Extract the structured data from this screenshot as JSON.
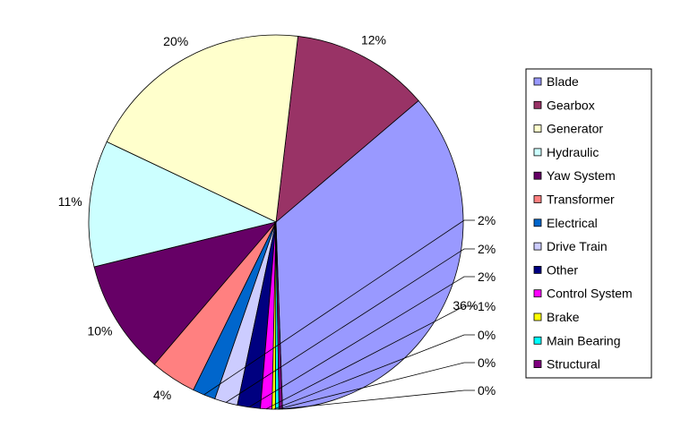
{
  "chart_data": {
    "type": "pie",
    "title": "",
    "legend_position": "right",
    "slices": [
      {
        "name": "Blade",
        "value": 36,
        "label": "36%",
        "color": "#9999FF"
      },
      {
        "name": "Gearbox",
        "value": 12,
        "label": "12%",
        "color": "#993366"
      },
      {
        "name": "Generator",
        "value": 20,
        "label": "20%",
        "color": "#FFFFCC"
      },
      {
        "name": "Hydraulic",
        "value": 11,
        "label": "11%",
        "color": "#CCFFFF"
      },
      {
        "name": "Yaw System",
        "value": 10,
        "label": "10%",
        "color": "#660066"
      },
      {
        "name": "Transformer",
        "value": 4,
        "label": "4%",
        "color": "#FF8080"
      },
      {
        "name": "Electrical",
        "value": 2,
        "label": "2%",
        "color": "#0066CC"
      },
      {
        "name": "Drive Train",
        "value": 2,
        "label": "2%",
        "color": "#CCCCFF"
      },
      {
        "name": "Other",
        "value": 2,
        "label": "2%",
        "color": "#000080"
      },
      {
        "name": "Control System",
        "value": 1,
        "label": "1%",
        "color": "#FF00FF"
      },
      {
        "name": "Brake",
        "value": 0.3,
        "label": "0%",
        "color": "#FFFF00"
      },
      {
        "name": "Main Bearing",
        "value": 0.3,
        "label": "0%",
        "color": "#00FFFF"
      },
      {
        "name": "Structural",
        "value": 0.3,
        "label": "0%",
        "color": "#800080"
      }
    ]
  }
}
